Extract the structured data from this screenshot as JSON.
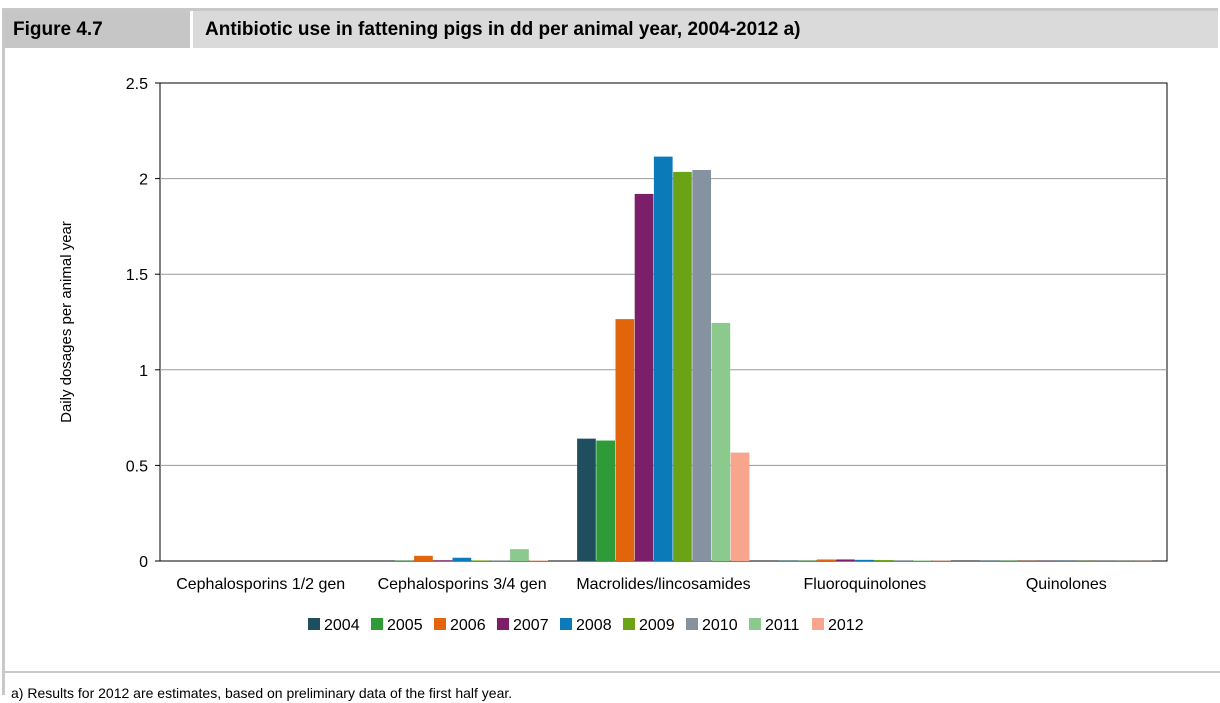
{
  "figure": {
    "label": "Figure 4.7",
    "title": "Antibiotic use in fattening pigs in dd per animal year, 2004-2012 a)"
  },
  "footnote": "a) Results for 2012 are estimates, based on preliminary data of the first half year.",
  "chart_data": {
    "type": "bar",
    "ylabel": "Daily dosages per animal year",
    "xlabel": "",
    "ylim": [
      0,
      2.5
    ],
    "yticks": [
      0,
      0.5,
      1,
      1.5,
      2,
      2.5
    ],
    "ytick_labels": [
      "0",
      "0.5",
      "1",
      "1.5",
      "2",
      "2.5"
    ],
    "grid": true,
    "legend_position": "bottom",
    "categories": [
      "Cephalosporins 1/2 gen",
      "Cephalosporins 3/4 gen",
      "Macrolides/lincosamides",
      "Fluoroquinolones",
      "Quinolones"
    ],
    "series": [
      {
        "name": "2004",
        "color": "#1f4e5f",
        "values": [
          0,
          0,
          0.64,
          0.003,
          0.002
        ]
      },
      {
        "name": "2005",
        "color": "#2e9a38",
        "values": [
          0,
          0.002,
          0.63,
          0.002,
          0.002
        ]
      },
      {
        "name": "2006",
        "color": "#e3650b",
        "values": [
          0,
          0.027,
          1.265,
          0.008,
          0.001
        ]
      },
      {
        "name": "2007",
        "color": "#7b1f6a",
        "values": [
          0,
          0.004,
          1.92,
          0.008,
          0.001
        ]
      },
      {
        "name": "2008",
        "color": "#0a7ab9",
        "values": [
          0,
          0.017,
          2.115,
          0.006,
          0.001
        ]
      },
      {
        "name": "2009",
        "color": "#6aa416",
        "values": [
          0,
          0.003,
          2.035,
          0.005,
          0.001
        ]
      },
      {
        "name": "2010",
        "color": "#8593a0",
        "values": [
          0,
          0.002,
          2.045,
          0.004,
          0.001
        ]
      },
      {
        "name": "2011",
        "color": "#8cc98d",
        "values": [
          0,
          0.062,
          1.245,
          0.003,
          0.001
        ]
      },
      {
        "name": "2012",
        "color": "#f7a58c",
        "values": [
          0,
          0.003,
          0.567,
          0.002,
          0.001
        ]
      }
    ]
  }
}
